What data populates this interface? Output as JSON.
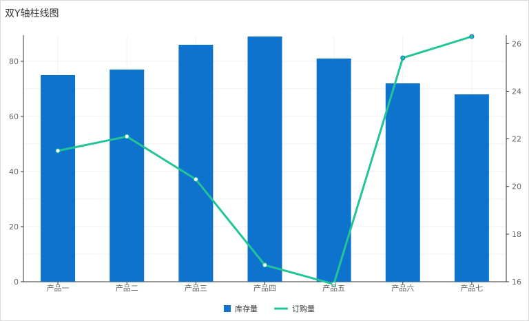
{
  "title": "双Y轴柱线图",
  "chart_data": {
    "type": "bar+line",
    "title": "双Y轴柱线图",
    "categories": [
      "产品一",
      "产品二",
      "产品三",
      "产品四",
      "产品五",
      "产品六",
      "产品七"
    ],
    "series": [
      {
        "name": "库存量",
        "type": "bar",
        "axis": "left",
        "color": "#0d73cc",
        "values": [
          75,
          77,
          86,
          89,
          81,
          72,
          68
        ]
      },
      {
        "name": "订购量",
        "type": "line",
        "axis": "right",
        "color": "#22c498",
        "values": [
          21.5,
          22.1,
          20.3,
          16.7,
          15.9,
          25.4,
          26.3
        ]
      }
    ],
    "y_left": {
      "ylim": [
        0,
        89
      ],
      "ticks": [
        0,
        20,
        40,
        60,
        80
      ]
    },
    "y_right": {
      "ylim": [
        16,
        26.3
      ],
      "ticks": [
        16,
        18,
        20,
        22,
        24,
        26
      ]
    },
    "legend_position": "bottom",
    "grid": true
  }
}
